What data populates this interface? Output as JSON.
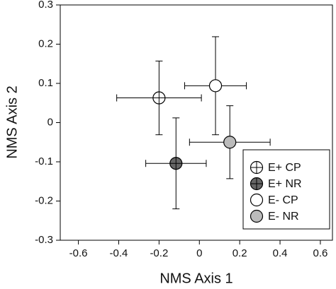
{
  "chart_data": {
    "type": "scatter",
    "xlabel": "NMS Axis 1",
    "ylabel": "NMS Axis 2",
    "xlim": [
      -0.69,
      0.66
    ],
    "xticks": [
      -0.6,
      -0.4,
      -0.2,
      0.0,
      0.2,
      0.4,
      0.6
    ],
    "ylim": [
      -0.3,
      0.3
    ],
    "yticks": [
      -0.3,
      -0.2,
      -0.1,
      0.0,
      0.1,
      0.2,
      0.3
    ],
    "legend": "lower right",
    "series": [
      {
        "name": "E+ CP",
        "color": "#ffffff",
        "cross": true,
        "x": [
          -0.2
        ],
        "y": [
          0.063
        ],
        "xerr": [
          0.21
        ],
        "yerr": [
          0.094
        ]
      },
      {
        "name": "E+ NR",
        "color": "#666666",
        "cross": true,
        "x": [
          -0.116
        ],
        "y": [
          -0.104
        ],
        "xerr": [
          0.15
        ],
        "yerr": [
          0.116
        ]
      },
      {
        "name": "E- CP",
        "color": "#ffffff",
        "cross": false,
        "x": [
          0.08
        ],
        "y": [
          0.094
        ],
        "xerr": [
          0.153
        ],
        "yerr": [
          0.125
        ]
      },
      {
        "name": "E- NR",
        "color": "#bbbbbb",
        "cross": false,
        "x": [
          0.151
        ],
        "y": [
          -0.05
        ],
        "xerr": [
          0.2
        ],
        "yerr": [
          0.093
        ]
      }
    ]
  }
}
